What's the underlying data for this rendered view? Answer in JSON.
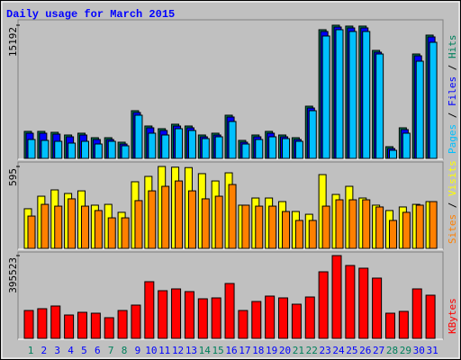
{
  "chart_data": [
    {
      "type": "bar",
      "title": "Daily usage for March 2015",
      "series": [
        {
          "name": "Pages",
          "color": "#00c0ff",
          "values": [
            2156,
            2053,
            1950,
            1745,
            1950,
            1642,
            1950,
            1437,
            4927,
            2874,
            2669,
            3387,
            3182,
            2258,
            2464,
            4209,
            1642,
            2156,
            2464,
            2258,
            1950,
            5440,
            13960,
            14679,
            14474,
            14474,
            11907,
            924,
            2874,
            11086,
            13242
          ]
        },
        {
          "name": "Files",
          "color": "#0000ff",
          "values": [
            2874,
            2874,
            2772,
            2464,
            2669,
            2156,
            2156,
            1642,
            5235,
            3490,
            3182,
            3695,
            3490,
            2464,
            2669,
            4722,
            1848,
            2464,
            2874,
            2464,
            2156,
            5748,
            14474,
            14987,
            14884,
            14884,
            12113,
            1129,
            3285,
            11702,
            13858
          ]
        },
        {
          "name": "Hits",
          "color": "#00805c",
          "values": [
            3080,
            3080,
            2977,
            2669,
            2874,
            2361,
            2361,
            1848,
            5440,
            3695,
            3387,
            3901,
            3695,
            2669,
            2874,
            4927,
            2053,
            2669,
            3080,
            2669,
            2361,
            5954,
            14679,
            15192,
            15090,
            15090,
            12318,
            1334,
            3490,
            11907,
            14063
          ]
        }
      ],
      "legend_separator": " / ",
      "ylim": [
        0,
        15192
      ],
      "yticks": [
        15192
      ]
    },
    {
      "type": "bar",
      "series": [
        {
          "name": "Sites",
          "color": "#ff8000",
          "values": [
            235,
            320,
            307,
            360,
            307,
            275,
            222,
            222,
            347,
            418,
            451,
            490,
            418,
            360,
            379,
            464,
            314,
            307,
            307,
            268,
            203,
            203,
            307,
            353,
            353,
            353,
            301,
            203,
            262,
            314,
            340
          ]
        },
        {
          "name": "Visits",
          "color": "#ffff00",
          "values": [
            288,
            379,
            425,
            399,
            418,
            314,
            320,
            262,
            484,
            523,
            595,
            590,
            587,
            543,
            490,
            549,
            314,
            366,
            366,
            340,
            268,
            248,
            536,
            392,
            451,
            366,
            314,
            275,
            301,
            320,
            340
          ]
        }
      ],
      "legend_separator": " / ",
      "ylim": [
        0,
        595
      ],
      "yticks": [
        595
      ]
    },
    {
      "type": "bar",
      "categories": [
        "1",
        "2",
        "3",
        "4",
        "5",
        "6",
        "7",
        "8",
        "9",
        "10",
        "11",
        "12",
        "13",
        "14",
        "15",
        "16",
        "17",
        "18",
        "19",
        "20",
        "21",
        "22",
        "23",
        "24",
        "25",
        "26",
        "27",
        "28",
        "29",
        "30",
        "31"
      ],
      "label_colors": [
        "#00805c",
        "#0000ff",
        "#0000ff",
        "#0000ff",
        "#0000ff",
        "#0000ff",
        "#00805c",
        "#00805c",
        "#0000ff",
        "#0000ff",
        "#0000ff",
        "#0000ff",
        "#0000ff",
        "#00805c",
        "#00805c",
        "#0000ff",
        "#0000ff",
        "#0000ff",
        "#0000ff",
        "#0000ff",
        "#00805c",
        "#00805c",
        "#0000ff",
        "#0000ff",
        "#0000ff",
        "#0000ff",
        "#0000ff",
        "#00805c",
        "#00805c",
        "#0000ff",
        "#0000ff"
      ],
      "series": [
        {
          "name": "KBytes",
          "color": "#ff0000",
          "values": [
            133275,
            141874,
            154771,
            111779,
            124677,
            120378,
            98882,
            133275,
            159070,
            270850,
            227858,
            236456,
            223558,
            189165,
            193464,
            262251,
            133275,
            176267,
            202062,
            193464,
            163370,
            197763,
            318141,
            395523,
            348235,
            335338,
            288046,
            120378,
            128976,
            236456,
            206362
          ]
        }
      ],
      "ylim": [
        0,
        395523
      ],
      "yticks": [
        395523
      ]
    }
  ]
}
